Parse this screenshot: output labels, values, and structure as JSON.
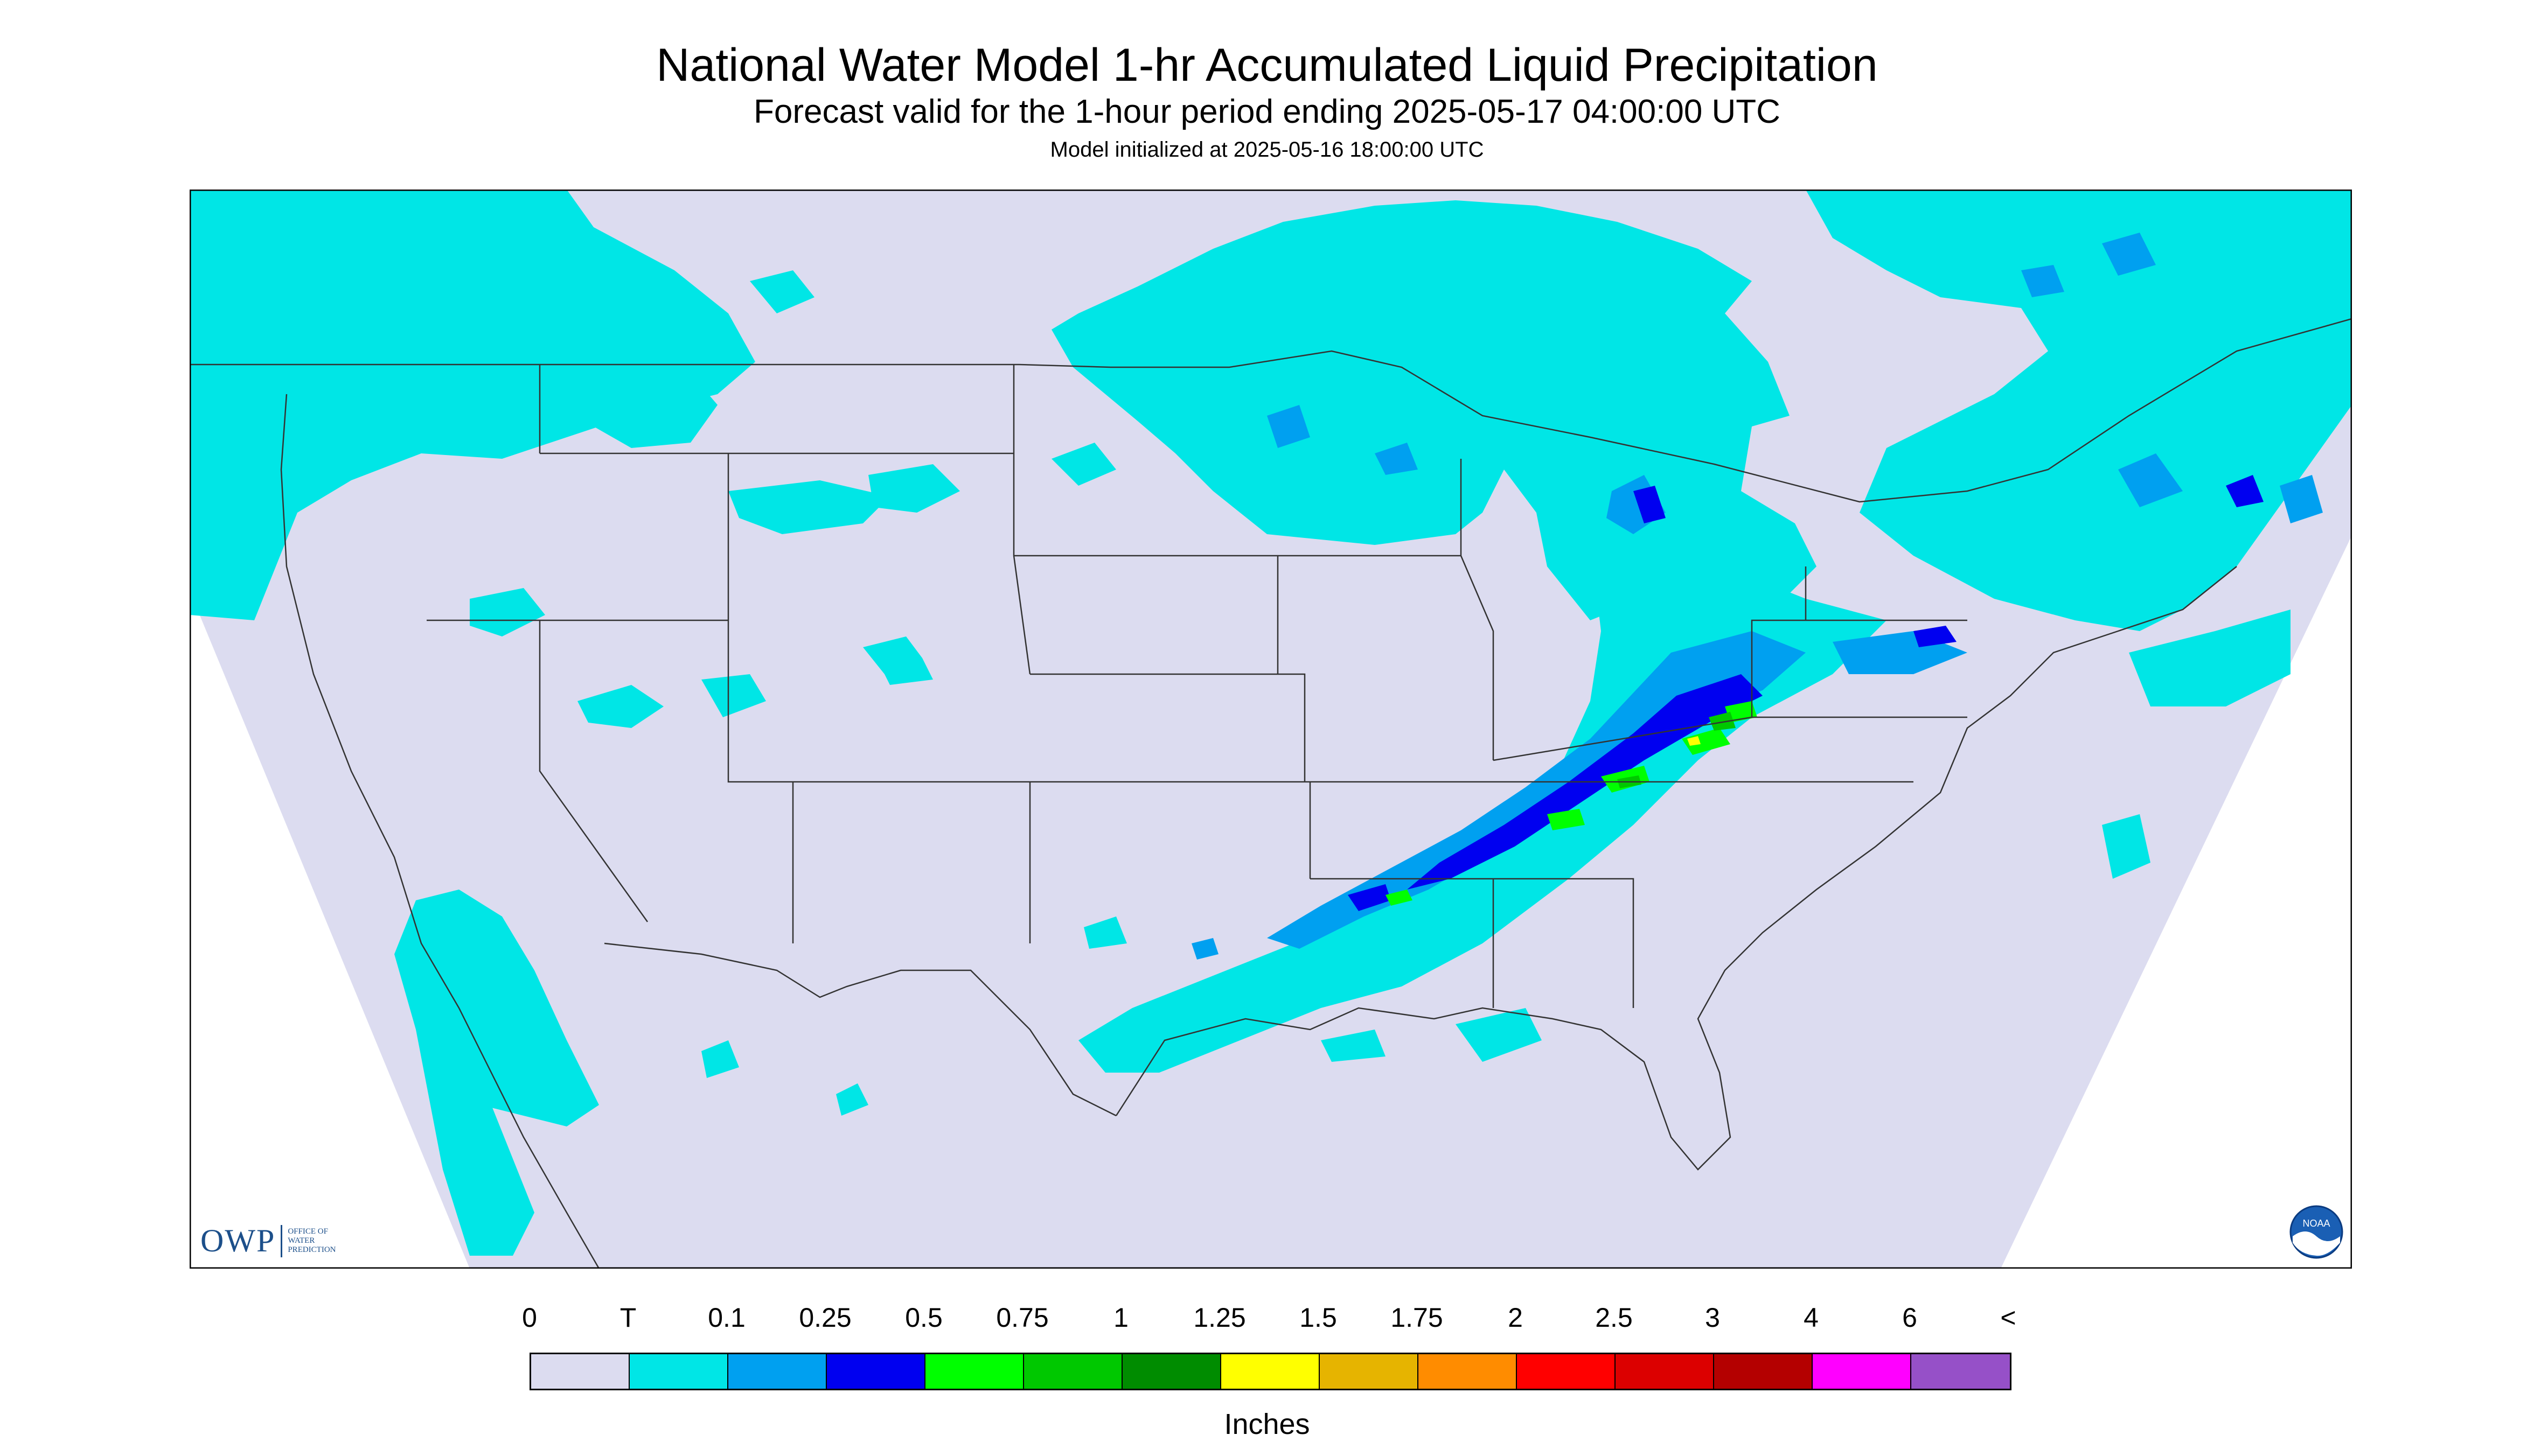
{
  "header": {
    "title": "National Water Model 1-hr Accumulated Liquid Precipitation",
    "subtitle": "Forecast valid for the 1-hour period ending 2025-05-17 04:00:00 UTC",
    "initialized": "Model initialized at 2025-05-16 18:00:00 UTC"
  },
  "map": {
    "region": "CONUS",
    "background_color": "#dcdcf0",
    "outside_domain_color": "#ffffff",
    "boundary_color": "#333333"
  },
  "legend": {
    "labels": [
      "0",
      "T",
      "0.1",
      "0.25",
      "0.5",
      "0.75",
      "1",
      "1.25",
      "1.5",
      "1.75",
      "2",
      "2.5",
      "3",
      "4",
      "6",
      "<"
    ],
    "colors": [
      "#dcdcf0",
      "#00e6e6",
      "#00a0f0",
      "#0000f0",
      "#00ff00",
      "#00c800",
      "#008c00",
      "#ffff00",
      "#e6b400",
      "#ff8c00",
      "#ff0000",
      "#dc0000",
      "#b40000",
      "#ff00ff",
      "#9650c8"
    ],
    "units": "Inches"
  },
  "logos": {
    "owp": {
      "mark": "OWP",
      "text": [
        "OFFICE OF",
        "WATER",
        "PREDICTION"
      ]
    },
    "noaa": {
      "text": "NOAA",
      "icon": "noaa-logo-icon"
    }
  }
}
